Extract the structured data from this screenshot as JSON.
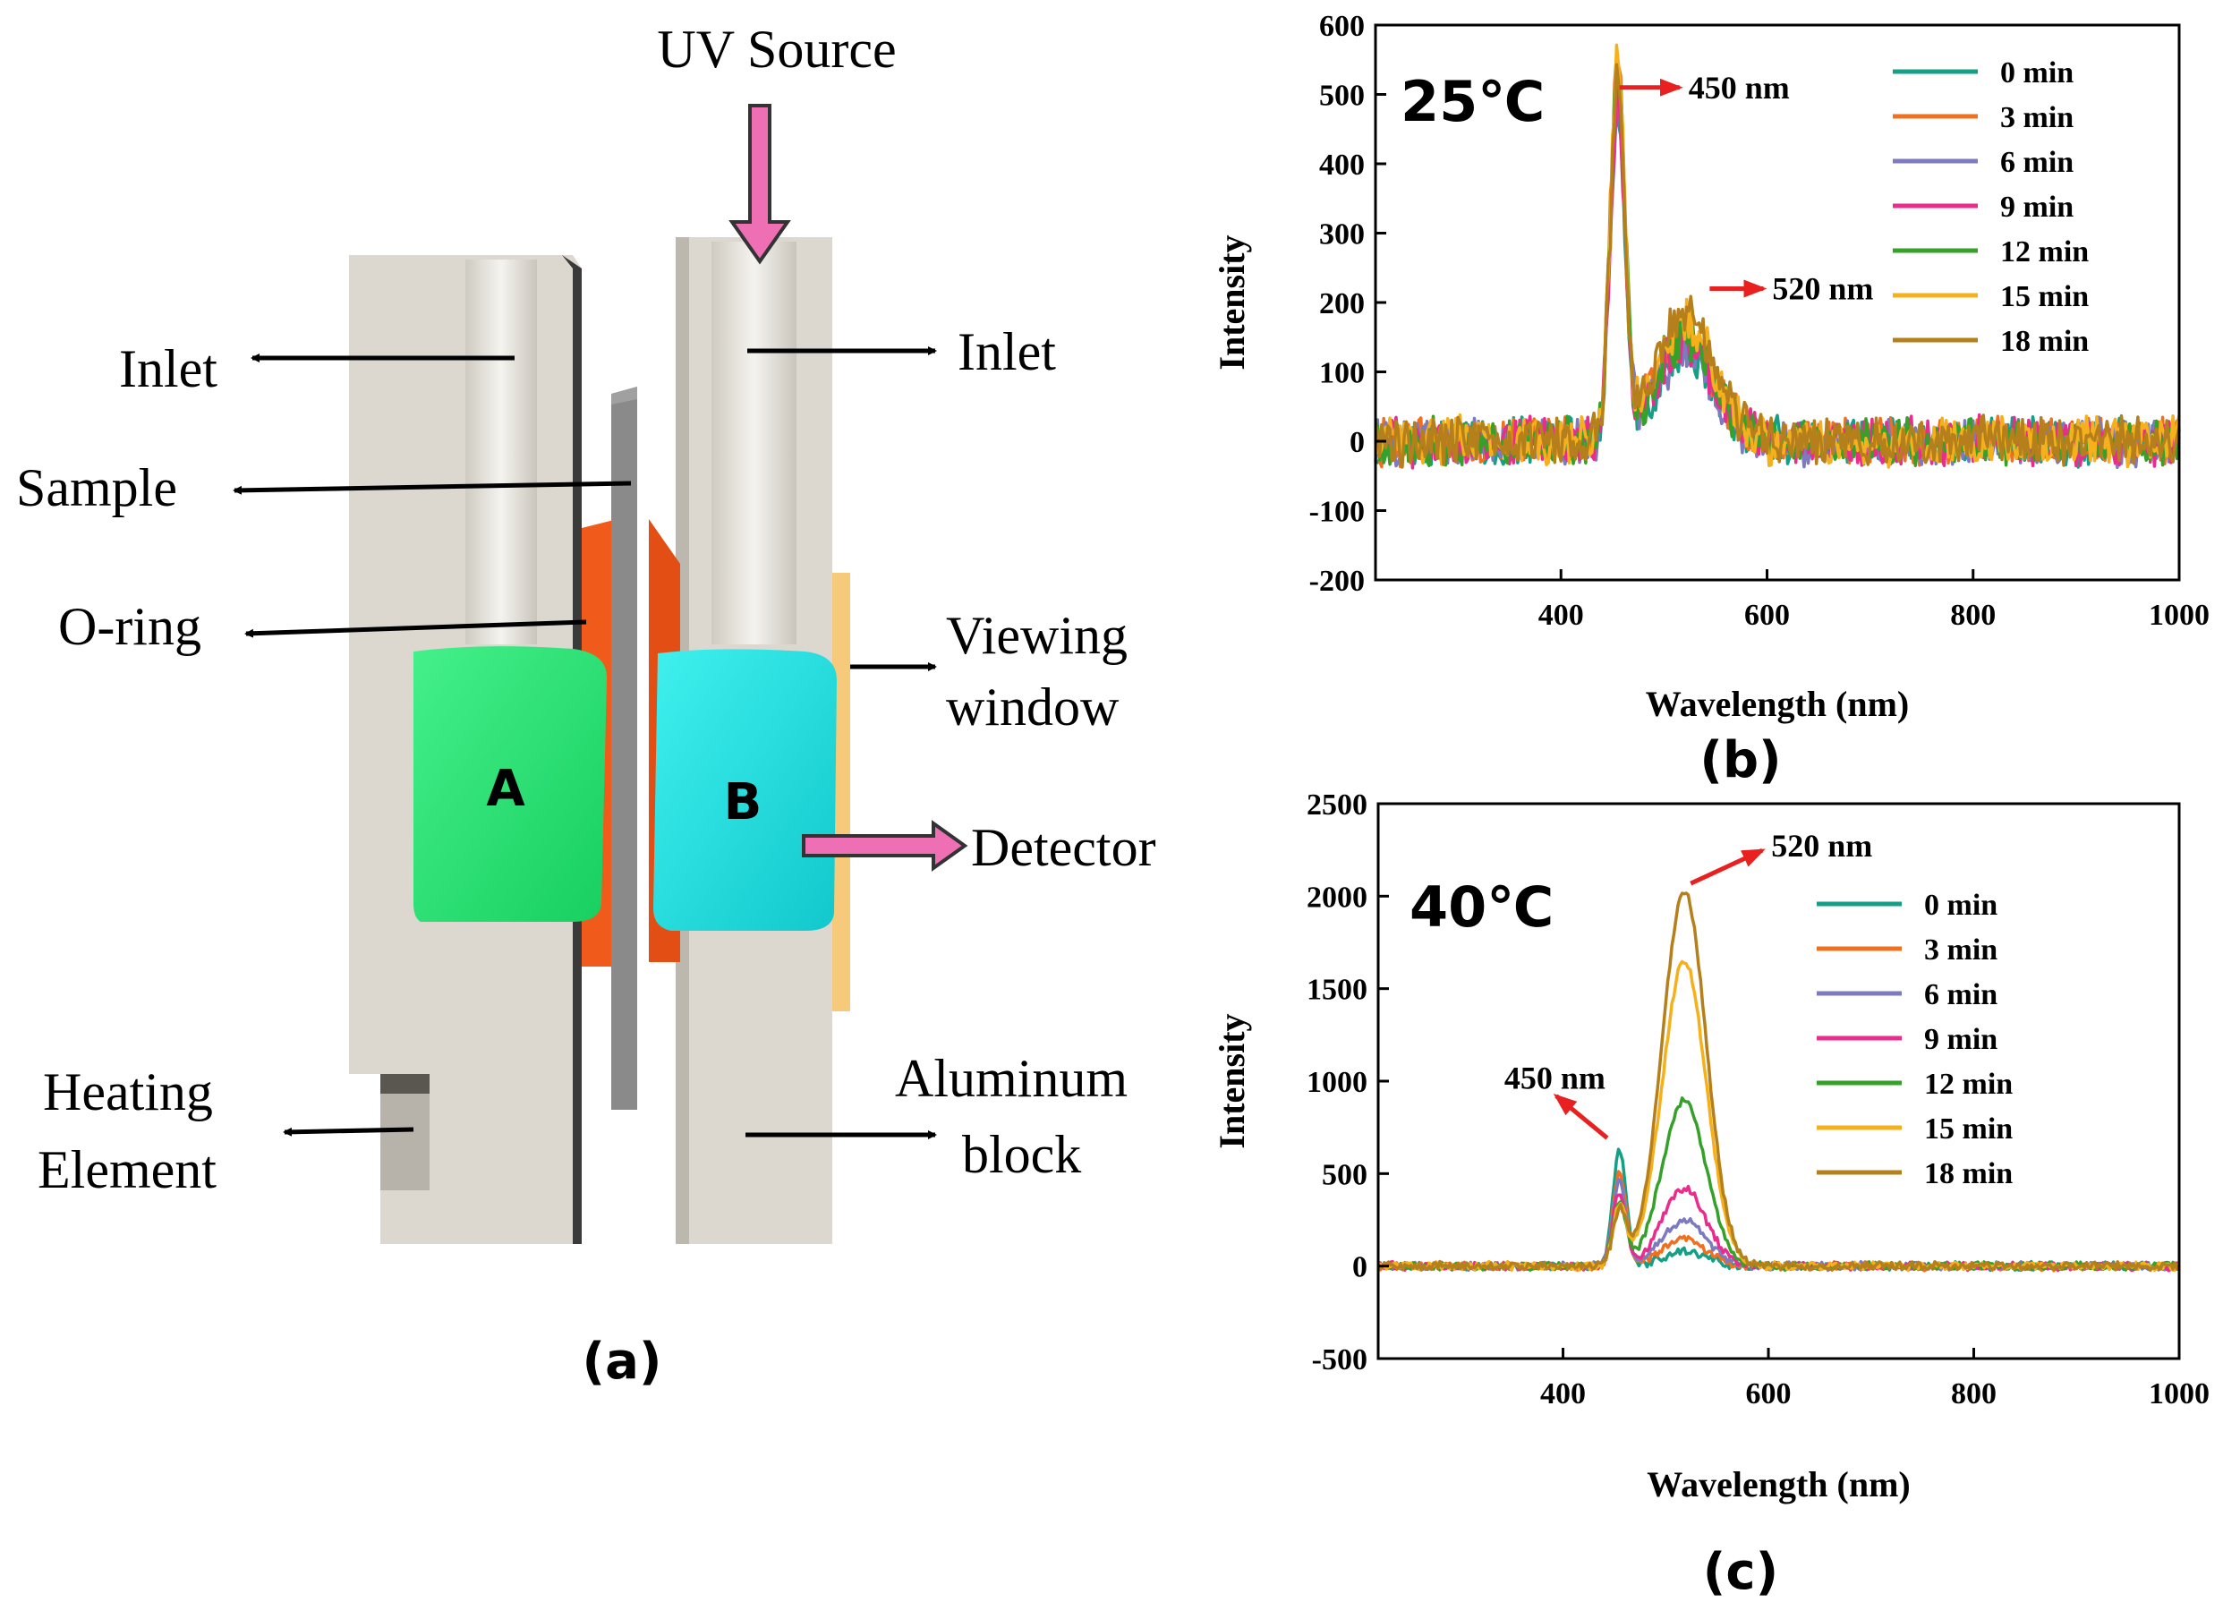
{
  "panel_a": {
    "caption": "(a)",
    "labels": {
      "uv_source": "UV Source",
      "inlet_left": "Inlet",
      "inlet_right": "Inlet",
      "sample": "Sample",
      "o_ring": "O-ring",
      "viewing_window_1": "Viewing",
      "viewing_window_2": "window",
      "detector": "Detector",
      "heating_1": "Heating",
      "heating_2": "Element",
      "aluminum_1": "Aluminum",
      "aluminum_2": "block",
      "chamber_a": "A",
      "chamber_b": "B"
    },
    "colors": {
      "block": "#dcd8d0",
      "chamber_a": "#2ee57a",
      "chamber_b": "#1fe0e0",
      "o_ring": "#f05a1a",
      "sample": "#8a8a8a",
      "window": "#f7c97a",
      "arrow_pink": "#ef6fb5"
    }
  },
  "chart_data": [
    {
      "type": "line",
      "panel": "b",
      "caption": "(b)",
      "temperature_label": "25℃",
      "xlabel": "Wavelength (nm)",
      "ylabel": "Intensity",
      "xlim": [
        220,
        1000
      ],
      "ylim": [
        -200,
        600
      ],
      "xticks": [
        400,
        600,
        800,
        1000
      ],
      "yticks": [
        -200,
        -100,
        0,
        100,
        200,
        300,
        400,
        500,
        600
      ],
      "legend_position": "top-right",
      "annotations": [
        {
          "text": "450 nm",
          "x": 450,
          "y": 510
        },
        {
          "text": "520 nm",
          "x": 520,
          "y": 220
        }
      ],
      "peaks": [
        {
          "center": 455,
          "width": 10
        },
        {
          "center": 520,
          "width": 40
        }
      ],
      "noise": 40,
      "series": [
        {
          "name": "0 min",
          "color": "#159f86",
          "peak1": 470,
          "peak2": 120
        },
        {
          "name": "3 min",
          "color": "#f07020",
          "peak1": 540,
          "peak2": 150
        },
        {
          "name": "6 min",
          "color": "#7d7ac0",
          "peak1": 480,
          "peak2": 130
        },
        {
          "name": "9 min",
          "color": "#ea2d8c",
          "peak1": 470,
          "peak2": 140
        },
        {
          "name": "12 min",
          "color": "#36a12a",
          "peak1": 520,
          "peak2": 150
        },
        {
          "name": "15 min",
          "color": "#f5b01c",
          "peak1": 540,
          "peak2": 170
        },
        {
          "name": "18 min",
          "color": "#b5801c",
          "peak1": 500,
          "peak2": 190
        }
      ]
    },
    {
      "type": "line",
      "panel": "c",
      "caption": "(c)",
      "temperature_label": "40℃",
      "xlabel": "Wavelength (nm)",
      "ylabel": "Intensity",
      "xlim": [
        220,
        1000
      ],
      "ylim": [
        -500,
        2500
      ],
      "xticks": [
        400,
        600,
        800,
        1000
      ],
      "yticks": [
        -500,
        0,
        500,
        1000,
        1500,
        2000,
        2500
      ],
      "legend_position": "top-right",
      "annotations": [
        {
          "text": "520 nm",
          "x": 520,
          "y": 2030
        },
        {
          "text": "450 nm",
          "x": 450,
          "y": 620
        }
      ],
      "peaks": [
        {
          "center": 455,
          "width": 9
        },
        {
          "center": 518,
          "width": 30
        }
      ],
      "noise": 25,
      "series": [
        {
          "name": "0 min",
          "color": "#159f86",
          "peak1": 620,
          "peak2": 80
        },
        {
          "name": "3 min",
          "color": "#f07020",
          "peak1": 500,
          "peak2": 150
        },
        {
          "name": "6 min",
          "color": "#7d7ac0",
          "peak1": 450,
          "peak2": 250
        },
        {
          "name": "9 min",
          "color": "#ea2d8c",
          "peak1": 400,
          "peak2": 420
        },
        {
          "name": "12 min",
          "color": "#36a12a",
          "peak1": 350,
          "peak2": 900
        },
        {
          "name": "15 min",
          "color": "#f5b01c",
          "peak1": 320,
          "peak2": 1650
        },
        {
          "name": "18 min",
          "color": "#b5801c",
          "peak1": 300,
          "peak2": 2030
        }
      ]
    }
  ]
}
